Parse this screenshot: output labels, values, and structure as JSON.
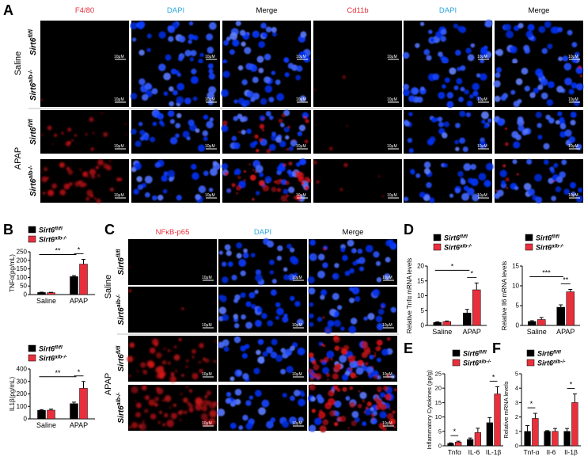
{
  "panel_letters": {
    "a": "A",
    "b": "B",
    "c": "C",
    "d": "D",
    "e": "E",
    "f": "F"
  },
  "micro_A": {
    "headers_left": [
      "F4/80",
      "DAPI",
      "Merge"
    ],
    "headers_right": [
      "Cd11b",
      "DAPI",
      "Merge"
    ],
    "group_labels": [
      "Saline",
      "APAP"
    ],
    "row_labels": [
      "Sirt6fl/fl",
      "Sirt6alb-/-",
      "Sirt6fl/fl",
      "Sirt6alb-/-"
    ],
    "scale_label": "10μM"
  },
  "micro_C": {
    "headers": [
      "NFκB-p65",
      "DAPI",
      "Merge"
    ],
    "group_labels": [
      "Saline",
      "APAP"
    ],
    "row_labels": [
      "Sirt6fl/fl",
      "Sirt6alb-/-",
      "Sirt6fl/fl",
      "Sirt6alb-/-"
    ],
    "scale_label": "10μM"
  },
  "colors": {
    "control": "#000000",
    "knockout": "#e8303c",
    "red_header": "#e8303c",
    "blue_header": "#2aa8e0"
  },
  "chart_data": [
    {
      "id": "B-top",
      "type": "bar",
      "ylabel": "TNFα(pg/mL)",
      "ylim": [
        0,
        250
      ],
      "yticks": [
        0,
        50,
        100,
        150,
        200,
        250
      ],
      "categories": [
        "Saline",
        "APAP"
      ],
      "series": [
        {
          "name": "Sirt6fl/fl",
          "values": [
            12,
            105
          ],
          "errors": [
            2,
            6
          ]
        },
        {
          "name": "Sirt6alb-/-",
          "values": [
            11,
            178
          ],
          "errors": [
            2,
            28
          ]
        }
      ],
      "significance": [
        {
          "label": "**",
          "type": "between"
        },
        {
          "label": "*",
          "type": "within"
        }
      ]
    },
    {
      "id": "B-bottom",
      "type": "bar",
      "ylabel": "IL1β(pg/mL)",
      "ylim": [
        0,
        400
      ],
      "yticks": [
        0,
        100,
        200,
        300,
        400
      ],
      "categories": [
        "Saline",
        "APAP"
      ],
      "series": [
        {
          "name": "Sirt6fl/fl",
          "values": [
            68,
            122
          ],
          "errors": [
            6,
            12
          ]
        },
        {
          "name": "Sirt6alb-/-",
          "values": [
            70,
            245
          ],
          "errors": [
            8,
            55
          ]
        }
      ],
      "significance": [
        {
          "label": "**",
          "type": "between"
        },
        {
          "label": "*",
          "type": "within"
        }
      ]
    },
    {
      "id": "D-left",
      "type": "bar",
      "ylabel": "Relative Tnfα mRNA levels",
      "ylim": [
        0,
        20
      ],
      "yticks": [
        0,
        5,
        10,
        15,
        20
      ],
      "categories": [
        "Saline",
        "APAP"
      ],
      "series": [
        {
          "name": "Sirt6fl/fl",
          "values": [
            1,
            4.2
          ],
          "errors": [
            0.2,
            1.2
          ]
        },
        {
          "name": "Sirt6alb-/-",
          "values": [
            1.3,
            12
          ],
          "errors": [
            0.2,
            2.3
          ]
        }
      ],
      "significance": [
        {
          "label": "*",
          "type": "between"
        },
        {
          "label": "*",
          "type": "within"
        }
      ]
    },
    {
      "id": "D-right",
      "type": "bar",
      "ylabel": "Relative Il6 mRNA levels",
      "ylim": [
        0,
        15
      ],
      "yticks": [
        0,
        5,
        10,
        15
      ],
      "categories": [
        "Saline",
        "APAP"
      ],
      "series": [
        {
          "name": "Sirt6fl/fl",
          "values": [
            1,
            4.6
          ],
          "errors": [
            0.2,
            0.6
          ]
        },
        {
          "name": "Sirt6alb-/-",
          "values": [
            1.5,
            8.5
          ],
          "errors": [
            0.5,
            0.6
          ]
        }
      ],
      "significance": [
        {
          "label": "***",
          "type": "between"
        },
        {
          "label": "**",
          "type": "within"
        }
      ]
    },
    {
      "id": "E",
      "type": "bar",
      "ylabel": "Inflammatory Cytokines (pg/g)",
      "ylim": [
        0,
        25
      ],
      "yticks": [
        0,
        5,
        10,
        15,
        20,
        25
      ],
      "categories": [
        "Tnfα",
        "IL-6",
        "IL-1β"
      ],
      "series": [
        {
          "name": "Sirt6fl/fl",
          "values": [
            0.8,
            2.2,
            8
          ],
          "errors": [
            0.2,
            0.5,
            1.8
          ]
        },
        {
          "name": "Sirt6alb-/-",
          "values": [
            1.3,
            4.6,
            18
          ],
          "errors": [
            0.3,
            1.5,
            2.5
          ]
        }
      ],
      "significance": [
        {
          "label": "*",
          "type": "within",
          "cat": 0
        },
        {
          "label": "*",
          "type": "within",
          "cat": 2
        }
      ]
    },
    {
      "id": "F",
      "type": "bar",
      "ylabel": "Relative mRNA levels",
      "ylim": [
        0,
        5
      ],
      "yticks": [
        0,
        1,
        2,
        3,
        4,
        5
      ],
      "categories": [
        "Tnf-α",
        "Il-6",
        "Il-1β"
      ],
      "series": [
        {
          "name": "Sirt6fl/fl",
          "values": [
            1,
            1,
            1
          ],
          "errors": [
            0.4,
            0.05,
            0.2
          ]
        },
        {
          "name": "Sirt6alb-/-",
          "values": [
            1.9,
            1,
            3
          ],
          "errors": [
            0.35,
            0.2,
            0.6
          ]
        }
      ],
      "significance": [
        {
          "label": "*",
          "type": "within",
          "cat": 0
        },
        {
          "label": "*",
          "type": "within",
          "cat": 2
        }
      ]
    }
  ]
}
